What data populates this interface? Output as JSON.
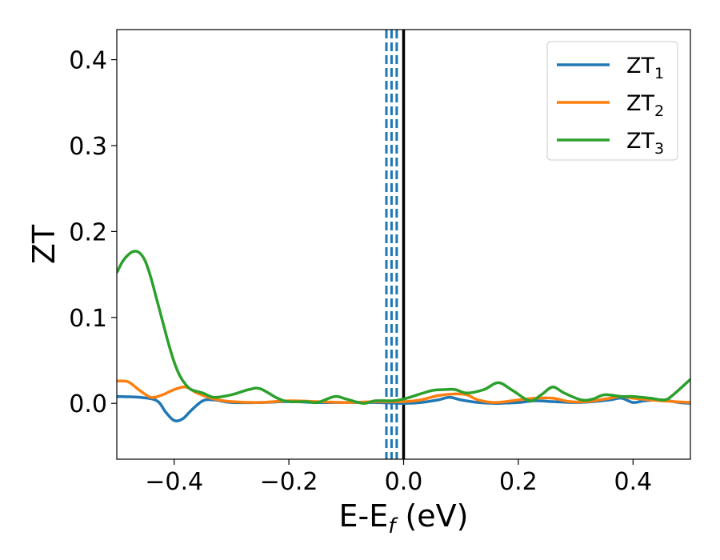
{
  "chart_data": {
    "type": "line",
    "xlabel_main": "E-E",
    "xlabel_sub": "f",
    "xlabel_unit": " (eV)",
    "ylabel": "ZT",
    "xlim": [
      -0.5,
      0.5
    ],
    "ylim": [
      -0.065,
      0.435
    ],
    "xticks": [
      -0.4,
      -0.2,
      0.0,
      0.2,
      0.4
    ],
    "xtick_labels": [
      "−0.4",
      "−0.2",
      "0.0",
      "0.2",
      "0.4"
    ],
    "yticks": [
      0.0,
      0.1,
      0.2,
      0.3,
      0.4
    ],
    "ytick_labels": [
      "0.0",
      "0.1",
      "0.2",
      "0.3",
      "0.4"
    ],
    "legend_position": "top-right",
    "grid": false,
    "vertical_lines": [
      {
        "x": 0.0,
        "style": "solid",
        "color": "#000000"
      },
      {
        "x": -0.03,
        "style": "dashed",
        "color": "#1f77b4"
      },
      {
        "x": -0.021,
        "style": "dashed",
        "color": "#1f77b4"
      },
      {
        "x": -0.012,
        "style": "dashed",
        "color": "#1f77b4"
      }
    ],
    "series": [
      {
        "name_main": "ZT",
        "name_sub": "1",
        "color": "#1f77b4",
        "x": [
          -0.5,
          -0.46,
          -0.43,
          -0.415,
          -0.4,
          -0.385,
          -0.37,
          -0.35,
          -0.33,
          -0.3,
          -0.25,
          -0.2,
          -0.15,
          -0.1,
          -0.05,
          0.0,
          0.03,
          0.06,
          0.08,
          0.1,
          0.13,
          0.16,
          0.2,
          0.23,
          0.26,
          0.3,
          0.33,
          0.36,
          0.38,
          0.4,
          0.42,
          0.45,
          0.48,
          0.5
        ],
        "y": [
          0.008,
          0.007,
          0.003,
          -0.01,
          -0.02,
          -0.018,
          -0.008,
          0.003,
          0.004,
          0.001,
          0.001,
          0.002,
          0.001,
          0.001,
          0.001,
          0.0,
          0.001,
          0.004,
          0.007,
          0.004,
          0.001,
          0.0,
          0.001,
          0.003,
          0.002,
          0.001,
          0.002,
          0.004,
          0.006,
          0.001,
          0.003,
          0.004,
          0.001,
          0.0
        ]
      },
      {
        "name_main": "ZT",
        "name_sub": "2",
        "color": "#ff7f0e",
        "x": [
          -0.5,
          -0.48,
          -0.46,
          -0.44,
          -0.42,
          -0.4,
          -0.38,
          -0.36,
          -0.33,
          -0.3,
          -0.25,
          -0.2,
          -0.15,
          -0.1,
          -0.05,
          0.0,
          0.03,
          0.06,
          0.09,
          0.11,
          0.13,
          0.16,
          0.2,
          0.23,
          0.26,
          0.29,
          0.32,
          0.36,
          0.38,
          0.4,
          0.45,
          0.5
        ],
        "y": [
          0.026,
          0.025,
          0.015,
          0.007,
          0.01,
          0.016,
          0.019,
          0.012,
          0.005,
          0.002,
          0.001,
          0.003,
          0.002,
          0.001,
          0.002,
          0.002,
          0.004,
          0.009,
          0.011,
          0.01,
          0.004,
          0.001,
          0.004,
          0.006,
          0.006,
          0.002,
          0.002,
          0.006,
          0.008,
          0.006,
          0.003,
          0.001
        ]
      },
      {
        "name_main": "ZT",
        "name_sub": "3",
        "color": "#2ca02c",
        "x": [
          -0.5,
          -0.49,
          -0.48,
          -0.47,
          -0.46,
          -0.45,
          -0.44,
          -0.43,
          -0.42,
          -0.41,
          -0.4,
          -0.39,
          -0.38,
          -0.37,
          -0.35,
          -0.33,
          -0.3,
          -0.27,
          -0.25,
          -0.22,
          -0.2,
          -0.17,
          -0.15,
          -0.12,
          -0.1,
          -0.07,
          -0.05,
          -0.02,
          0.0,
          0.02,
          0.05,
          0.07,
          0.09,
          0.11,
          0.14,
          0.165,
          0.19,
          0.22,
          0.24,
          0.26,
          0.28,
          0.31,
          0.33,
          0.35,
          0.38,
          0.4,
          0.43,
          0.455,
          0.47,
          0.5
        ],
        "y": [
          0.152,
          0.165,
          0.173,
          0.177,
          0.175,
          0.165,
          0.145,
          0.12,
          0.095,
          0.07,
          0.048,
          0.032,
          0.022,
          0.016,
          0.012,
          0.007,
          0.01,
          0.016,
          0.017,
          0.006,
          0.002,
          0.002,
          0.001,
          0.008,
          0.005,
          0.0,
          0.003,
          0.003,
          0.005,
          0.009,
          0.015,
          0.016,
          0.016,
          0.012,
          0.016,
          0.024,
          0.015,
          0.003,
          0.01,
          0.019,
          0.012,
          0.004,
          0.005,
          0.01,
          0.008,
          0.008,
          0.006,
          0.004,
          0.01,
          0.028
        ]
      }
    ]
  }
}
